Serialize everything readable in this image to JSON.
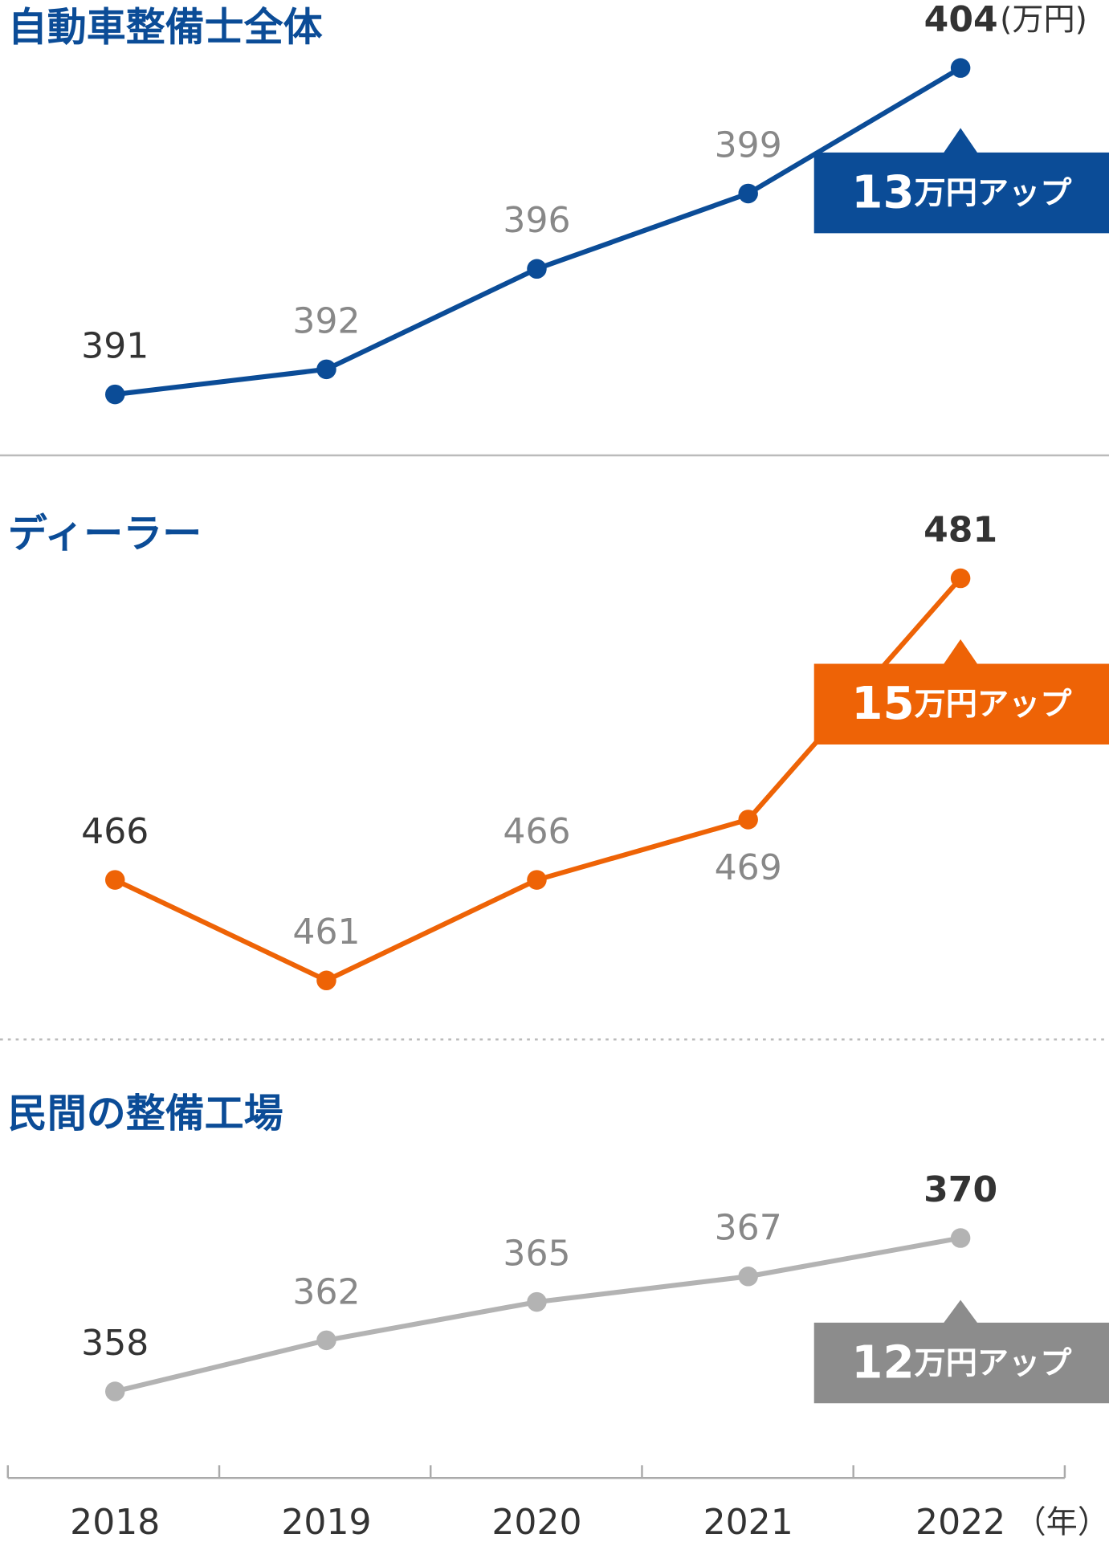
{
  "chart_data": [
    {
      "type": "line",
      "title": "自動車整備士全体",
      "unit": "(万円)",
      "color": "#0b4c97",
      "values": [
        391,
        392,
        396,
        399,
        404
      ],
      "ylim": [
        391,
        404
      ],
      "annotation": {
        "amount": "13",
        "text": "万円アップ"
      }
    },
    {
      "type": "line",
      "title": "ディーラー",
      "color": "#ee6306",
      "values": [
        466,
        461,
        466,
        469,
        481
      ],
      "ylim": [
        461,
        481
      ],
      "annotation": {
        "amount": "15",
        "text": "万円アップ"
      }
    },
    {
      "type": "line",
      "title": "民間の整備工場",
      "color": "#b3b3b3",
      "values": [
        358,
        362,
        365,
        367,
        370
      ],
      "ylim": [
        358,
        370
      ],
      "annotation": {
        "amount": "12",
        "text": "万円アップ"
      },
      "categories": [
        "2018",
        "2019",
        "2020",
        "2021",
        "2022"
      ],
      "x_unit": "（年）"
    }
  ]
}
